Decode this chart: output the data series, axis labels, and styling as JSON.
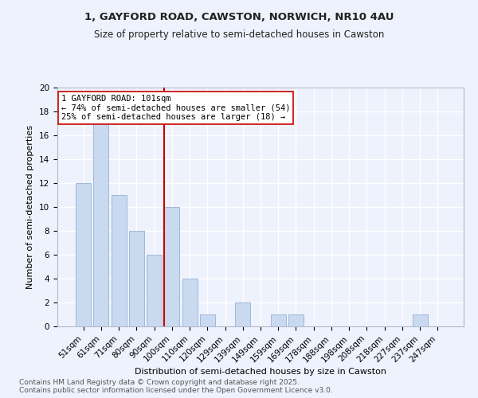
{
  "title_line1": "1, GAYFORD ROAD, CAWSTON, NORWICH, NR10 4AU",
  "title_line2": "Size of property relative to semi-detached houses in Cawston",
  "categories": [
    "51sqm",
    "61sqm",
    "71sqm",
    "80sqm",
    "90sqm",
    "100sqm",
    "110sqm",
    "120sqm",
    "129sqm",
    "139sqm",
    "149sqm",
    "159sqm",
    "169sqm",
    "178sqm",
    "188sqm",
    "198sqm",
    "208sqm",
    "218sqm",
    "227sqm",
    "237sqm",
    "247sqm"
  ],
  "values": [
    12,
    17,
    11,
    8,
    6,
    10,
    4,
    1,
    0,
    2,
    0,
    1,
    1,
    0,
    0,
    0,
    0,
    0,
    0,
    1,
    0
  ],
  "bar_color": "#c9d9f0",
  "bar_edge_color": "#a0b8d8",
  "vline_index": 5,
  "vline_color": "#cc0000",
  "annotation_title": "1 GAYFORD ROAD: 101sqm",
  "annotation_line2": "← 74% of semi-detached houses are smaller (54)",
  "annotation_line3": "25% of semi-detached houses are larger (18) →",
  "xlabel": "Distribution of semi-detached houses by size in Cawston",
  "ylabel": "Number of semi-detached properties",
  "ylim": [
    0,
    20
  ],
  "yticks": [
    0,
    2,
    4,
    6,
    8,
    10,
    12,
    14,
    16,
    18,
    20
  ],
  "footer_line1": "Contains HM Land Registry data © Crown copyright and database right 2025.",
  "footer_line2": "Contains public sector information licensed under the Open Government Licence v3.0.",
  "bg_color": "#eef2fc",
  "grid_color": "#ffffff",
  "title_fontsize": 9.5,
  "subtitle_fontsize": 8.5,
  "axis_label_fontsize": 8,
  "tick_fontsize": 7.5,
  "annotation_fontsize": 7.5,
  "footer_fontsize": 6.5
}
